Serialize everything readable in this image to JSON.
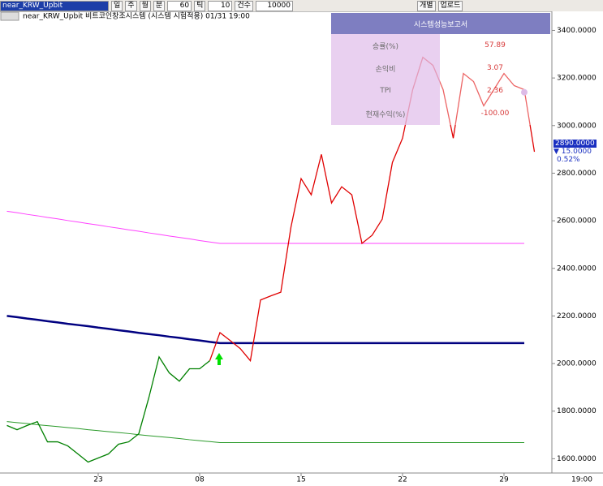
{
  "toolbar": {
    "symbol": "near_KRW_Upbit",
    "period_buttons": [
      "일",
      "주",
      "월",
      "분"
    ],
    "interval": "60",
    "tick_label": "틱",
    "tick_count": "10",
    "count_label": "건수",
    "count": "10000",
    "buttons": [
      "개별",
      "업로드"
    ]
  },
  "report": {
    "title": "시스템성능보고서",
    "rows": [
      [
        "승률(%)",
        "57.89"
      ],
      [
        "손익비",
        "3.07"
      ],
      [
        "TPI",
        "2.36"
      ],
      [
        "현재수익(%)",
        "-100.00"
      ]
    ]
  },
  "price_box": {
    "price": "2890.0000",
    "change": "15.0000",
    "change_pct": "0.52%"
  },
  "chart_data": {
    "type": "line",
    "title": "near_KRW_Upbit 비트코인창조시스템 (시스템 시험적용) 01/31 19:00",
    "categories": [
      null,
      null,
      null,
      null,
      null,
      null,
      null,
      null,
      null,
      "23",
      null,
      null,
      null,
      null,
      null,
      null,
      null,
      null,
      null,
      "08",
      null,
      null,
      null,
      null,
      null,
      null,
      null,
      null,
      null,
      "15",
      null,
      null,
      null,
      null,
      null,
      null,
      null,
      null,
      null,
      "22",
      null,
      null,
      null,
      null,
      null,
      null,
      null,
      null,
      null,
      "29",
      null,
      null,
      null
    ],
    "x_end_label": "19:00",
    "ylim": [
      1540,
      3480
    ],
    "yticks": [
      {
        "value": 1600,
        "label": "1600.0000"
      },
      {
        "value": 1800,
        "label": "1800.0000"
      },
      {
        "value": 2000,
        "label": "2000.0000"
      },
      {
        "value": 2200,
        "label": "2200.0000"
      },
      {
        "value": 2400,
        "label": "2400.0000"
      },
      {
        "value": 2600,
        "label": "2600.0000"
      },
      {
        "value": 2800,
        "label": "2800.0000"
      },
      {
        "value": 3000,
        "label": "3000.0000"
      },
      {
        "value": 3200,
        "label": "3200.0000"
      },
      {
        "value": 3400,
        "label": "3400.0000"
      }
    ],
    "series": [
      {
        "color": "#ff40ff",
        "width": 1,
        "values": [
          2640,
          2634,
          2627,
          2621,
          2614,
          2608,
          2601,
          2595,
          2588,
          2582,
          2575,
          2569,
          2562,
          2556,
          2549,
          2543,
          2536,
          2530,
          2524,
          2517,
          2511,
          2505,
          2505,
          2505,
          2505,
          2505,
          2505,
          2505,
          2505,
          2505,
          2505,
          2505,
          2505,
          2505,
          2505,
          2505,
          2505,
          2505,
          2505,
          2505,
          2505,
          2505,
          2505,
          2505,
          2505,
          2505,
          2505,
          2505,
          2505,
          2505,
          2505,
          2505,
          null
        ]
      },
      {
        "color": "#000080",
        "width": 2.5,
        "values": [
          2200,
          2195,
          2189,
          2184,
          2178,
          2173,
          2167,
          2162,
          2157,
          2151,
          2146,
          2140,
          2135,
          2129,
          2124,
          2119,
          2113,
          2108,
          2102,
          2097,
          2091,
          2086,
          2086,
          2086,
          2086,
          2086,
          2086,
          2086,
          2086,
          2086,
          2086,
          2086,
          2086,
          2086,
          2086,
          2086,
          2086,
          2086,
          2086,
          2086,
          2086,
          2086,
          2086,
          2086,
          2086,
          2086,
          2086,
          2086,
          2086,
          2086,
          2086,
          2086,
          null
        ]
      },
      {
        "color": "#2a9a2a",
        "width": 1,
        "values": [
          1756,
          1752,
          1748,
          1743,
          1739,
          1735,
          1731,
          1727,
          1722,
          1718,
          1714,
          1710,
          1706,
          1701,
          1697,
          1693,
          1689,
          1685,
          1680,
          1676,
          1672,
          1668,
          1668,
          1668,
          1668,
          1668,
          1668,
          1668,
          1668,
          1668,
          1668,
          1668,
          1668,
          1668,
          1668,
          1668,
          1668,
          1668,
          1668,
          1668,
          1668,
          1668,
          1668,
          1668,
          1668,
          1668,
          1668,
          1668,
          1668,
          1668,
          1668,
          1668,
          null
        ]
      },
      {
        "color": "#008000",
        "width": 1.3,
        "values": [
          1740,
          1722,
          1740,
          1756,
          1671,
          1671,
          1654,
          1620,
          1586,
          1603,
          1620,
          1661,
          1671,
          1705,
          1858,
          2028,
          1961,
          1926,
          1978,
          1978,
          2012,
          null,
          null,
          null,
          null,
          null,
          null,
          null,
          null,
          null,
          null,
          null,
          null,
          null,
          null,
          null,
          null,
          null,
          null,
          null,
          null,
          null,
          null,
          null,
          null,
          null,
          null,
          null,
          null,
          null,
          null,
          null,
          null
        ]
      },
      {
        "color": "#e00000",
        "width": 1.3,
        "values": [
          null,
          null,
          null,
          null,
          null,
          null,
          null,
          null,
          null,
          null,
          null,
          null,
          null,
          null,
          null,
          null,
          null,
          null,
          null,
          null,
          2012,
          2130,
          2097,
          2063,
          2012,
          2267,
          2284,
          2300,
          2573,
          2777,
          2709,
          2879,
          2675,
          2743,
          2709,
          2505,
          2539,
          2607,
          2845,
          2947,
          3151,
          3287,
          3253,
          3151,
          2947,
          3219,
          3185,
          3083,
          3151,
          3219,
          3168,
          3151,
          2890
        ]
      },
      {
        "color": "#c890d8",
        "style": "dot",
        "values": [
          null,
          null,
          null,
          null,
          null,
          null,
          null,
          null,
          null,
          null,
          null,
          null,
          null,
          null,
          null,
          null,
          null,
          null,
          null,
          null,
          null,
          null,
          null,
          null,
          null,
          null,
          null,
          null,
          null,
          null,
          null,
          null,
          null,
          null,
          null,
          null,
          null,
          null,
          null,
          null,
          null,
          null,
          null,
          null,
          null,
          null,
          null,
          null,
          null,
          null,
          null,
          3140,
          null
        ]
      }
    ]
  }
}
